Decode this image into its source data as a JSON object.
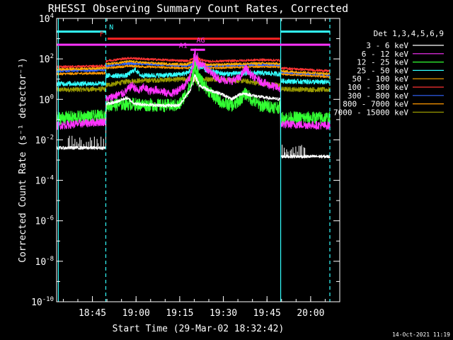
{
  "chart_data": {
    "type": "line",
    "title": "RHESSI Observing Summary Count Rates, Corrected",
    "xlabel": "Start Time (29-Mar-02 18:32:42)",
    "ylabel": "Corrected Count Rate (s⁻¹ detector⁻¹)",
    "x_unit": "minutes after 18:32:42",
    "xlim": [
      0,
      97.3
    ],
    "yscale": "log",
    "ylim_exp": [
      -10,
      4
    ],
    "x_ticks": [
      {
        "label": "18:45",
        "minute": 12.3
      },
      {
        "label": "19:00",
        "minute": 27.3
      },
      {
        "label": "19:15",
        "minute": 42.3
      },
      {
        "label": "19:30",
        "minute": 57.3
      },
      {
        "label": "19:45",
        "minute": 72.3
      },
      {
        "label": "20:00",
        "minute": 87.3
      }
    ],
    "y_ticks": [
      {
        "base": "10",
        "exp": "4",
        "value_exp": 4
      },
      {
        "base": "10",
        "exp": "2",
        "value_exp": 2
      },
      {
        "base": "10",
        "exp": "0",
        "value_exp": 0
      },
      {
        "base": "10",
        "exp": "-2",
        "value_exp": -2
      },
      {
        "base": "10",
        "exp": "-4",
        "value_exp": -4
      },
      {
        "base": "10",
        "exp": "-6",
        "value_exp": -6
      },
      {
        "base": "10",
        "exp": "-8",
        "value_exp": -8
      },
      {
        "base": "10",
        "exp": "-10",
        "value_exp": -10
      }
    ],
    "legend_title": "Det 1,3,4,5,6,9",
    "legend_position": "right",
    "series": [
      {
        "name": "3 - 6 keV",
        "color": "#ffffff",
        "noise": 0.02,
        "points": [
          [
            0,
            0.004
          ],
          [
            16.9,
            0.004
          ],
          [
            17.0,
            0.6
          ],
          [
            20,
            0.7
          ],
          [
            24,
            1.2
          ],
          [
            27,
            0.6
          ],
          [
            36,
            0.5
          ],
          [
            42,
            0.5
          ],
          [
            44,
            1.2
          ],
          [
            46,
            3
          ],
          [
            47.5,
            15
          ],
          [
            49,
            5
          ],
          [
            52,
            3
          ],
          [
            56,
            2
          ],
          [
            58,
            1.5
          ],
          [
            60,
            1.0
          ],
          [
            62,
            1.5
          ],
          [
            64,
            2.0
          ],
          [
            68,
            1.5
          ],
          [
            72,
            1.2
          ],
          [
            76.9,
            1.0
          ],
          [
            77.0,
            0.0015
          ],
          [
            94,
            0.0015
          ]
        ]
      },
      {
        "name": "6 - 12 keV",
        "color": "#ff33ff",
        "noise": 0.05,
        "points": [
          [
            0,
            0.05
          ],
          [
            16.9,
            0.08
          ],
          [
            17.0,
            1.0
          ],
          [
            20,
            1.5
          ],
          [
            23,
            2.0
          ],
          [
            26,
            5
          ],
          [
            28,
            2.5
          ],
          [
            30,
            4
          ],
          [
            32,
            2.5
          ],
          [
            34,
            3
          ],
          [
            36,
            2.5
          ],
          [
            38,
            2
          ],
          [
            40,
            2
          ],
          [
            44,
            5
          ],
          [
            46,
            15
          ],
          [
            47.5,
            150
          ],
          [
            49,
            60
          ],
          [
            51,
            40
          ],
          [
            53,
            20
          ],
          [
            56,
            10
          ],
          [
            60,
            8
          ],
          [
            63,
            12
          ],
          [
            65,
            35
          ],
          [
            67,
            15
          ],
          [
            70,
            8
          ],
          [
            73,
            5
          ],
          [
            76.9,
            3.5
          ],
          [
            77.0,
            0.06
          ],
          [
            94,
            0.05
          ]
        ]
      },
      {
        "name": "12 - 25 keV",
        "color": "#33ff33",
        "noise": 0.08,
        "points": [
          [
            0,
            0.12
          ],
          [
            16.9,
            0.15
          ],
          [
            17.0,
            0.5
          ],
          [
            24,
            0.6
          ],
          [
            36,
            0.5
          ],
          [
            42,
            0.5
          ],
          [
            44,
            1.5
          ],
          [
            46,
            5
          ],
          [
            47.5,
            40
          ],
          [
            49,
            10
          ],
          [
            52,
            3
          ],
          [
            55,
            1.0
          ],
          [
            58,
            0.6
          ],
          [
            61,
            0.5
          ],
          [
            63,
            1.0
          ],
          [
            65,
            2.0
          ],
          [
            67,
            1.0
          ],
          [
            70,
            0.5
          ],
          [
            76.9,
            0.4
          ],
          [
            77.0,
            0.12
          ],
          [
            94,
            0.12
          ]
        ]
      },
      {
        "name": "25 - 50 keV",
        "color": "#33ffff",
        "noise": 0.03,
        "points": [
          [
            0,
            6
          ],
          [
            16.9,
            6
          ],
          [
            17.0,
            15
          ],
          [
            24,
            15
          ],
          [
            27,
            30
          ],
          [
            29,
            15
          ],
          [
            40,
            16
          ],
          [
            45,
            20
          ],
          [
            47.5,
            55
          ],
          [
            52,
            25
          ],
          [
            58,
            18
          ],
          [
            64,
            20
          ],
          [
            70,
            20
          ],
          [
            76.9,
            18
          ],
          [
            77.0,
            8
          ],
          [
            94,
            7
          ]
        ]
      },
      {
        "name": "50 - 100 keV",
        "color": "#ffaa00",
        "noise": 0.015,
        "points": [
          [
            0,
            30
          ],
          [
            16.9,
            35
          ],
          [
            17.0,
            55
          ],
          [
            25,
            75
          ],
          [
            30,
            65
          ],
          [
            40,
            55
          ],
          [
            45,
            55
          ],
          [
            47.5,
            80
          ],
          [
            52,
            50
          ],
          [
            60,
            55
          ],
          [
            70,
            60
          ],
          [
            76.9,
            58
          ],
          [
            77.0,
            25
          ],
          [
            94,
            18
          ]
        ]
      },
      {
        "name": "100 - 300 keV",
        "color": "#ff3333",
        "noise": 0.015,
        "points": [
          [
            0,
            40
          ],
          [
            16.9,
            45
          ],
          [
            17.0,
            80
          ],
          [
            25,
            110
          ],
          [
            32,
            95
          ],
          [
            40,
            85
          ],
          [
            45,
            80
          ],
          [
            47.5,
            110
          ],
          [
            52,
            75
          ],
          [
            60,
            80
          ],
          [
            70,
            90
          ],
          [
            76.9,
            85
          ],
          [
            77.0,
            35
          ],
          [
            94,
            25
          ]
        ]
      },
      {
        "name": "300 - 800 keV",
        "color": "#3366ff",
        "noise": 0.015,
        "points": [
          [
            0,
            25
          ],
          [
            16.9,
            28
          ],
          [
            17.0,
            45
          ],
          [
            25,
            60
          ],
          [
            32,
            55
          ],
          [
            40,
            48
          ],
          [
            45,
            45
          ],
          [
            47.5,
            65
          ],
          [
            52,
            45
          ],
          [
            60,
            48
          ],
          [
            70,
            52
          ],
          [
            76.9,
            50
          ],
          [
            77.0,
            22
          ],
          [
            94,
            16
          ]
        ]
      },
      {
        "name": "800 - 7000 keV",
        "color": "#ff9900",
        "noise": 0.015,
        "points": [
          [
            0,
            18
          ],
          [
            16.9,
            20
          ],
          [
            17.0,
            35
          ],
          [
            25,
            45
          ],
          [
            32,
            40
          ],
          [
            40,
            37
          ],
          [
            45,
            35
          ],
          [
            47.5,
            50
          ],
          [
            52,
            35
          ],
          [
            60,
            38
          ],
          [
            70,
            42
          ],
          [
            76.9,
            40
          ],
          [
            77.0,
            18
          ],
          [
            94,
            13
          ]
        ]
      },
      {
        "name": "7000 - 15000 keV",
        "color": "#999900",
        "noise": 0.03,
        "points": [
          [
            0,
            3
          ],
          [
            16.9,
            3.2
          ],
          [
            17.0,
            5
          ],
          [
            25,
            8
          ],
          [
            35,
            9
          ],
          [
            45,
            10
          ],
          [
            55,
            10
          ],
          [
            65,
            8
          ],
          [
            70,
            6
          ],
          [
            76.9,
            5
          ],
          [
            77.0,
            3.2
          ],
          [
            94,
            3
          ]
        ]
      }
    ],
    "time_markers": [
      {
        "minute": 0.6,
        "color": "#33ffff",
        "style": "solid"
      },
      {
        "minute": 16.9,
        "color": "#33ffff",
        "style": "dashed"
      },
      {
        "minute": 77.0,
        "color": "#33ffff",
        "style": "solid"
      },
      {
        "minute": 93.9,
        "color": "#33ffff",
        "style": "dashed"
      }
    ],
    "flag_bars": [
      {
        "label": "N",
        "color": "#33ffff",
        "level_exp": 3.35,
        "segments": [
          [
            0,
            17
          ],
          [
            77,
            94
          ]
        ],
        "label_minute": 18.8
      },
      {
        "label": "F",
        "color": "#ff2222",
        "level_exp": 3.0,
        "segments": [
          [
            17.5,
            76.8
          ]
        ],
        "label_minute": 15.5
      },
      {
        "label": "",
        "color": "#ff33ff",
        "level_exp": 2.7,
        "segments": [
          [
            0,
            94
          ]
        ],
        "label_minute": 0
      },
      {
        "label": "AG",
        "color": "#ff33ff",
        "level_exp": 2.7,
        "segments": [],
        "label_minute": 49.5
      },
      {
        "label": "A1",
        "color": "#ff33ff",
        "level_exp": 2.45,
        "segments": [
          [
            46,
            51
          ]
        ],
        "label_minute": 43.5
      }
    ]
  },
  "footer": {
    "date_stamp": "14-Oct-2021 11:19"
  }
}
